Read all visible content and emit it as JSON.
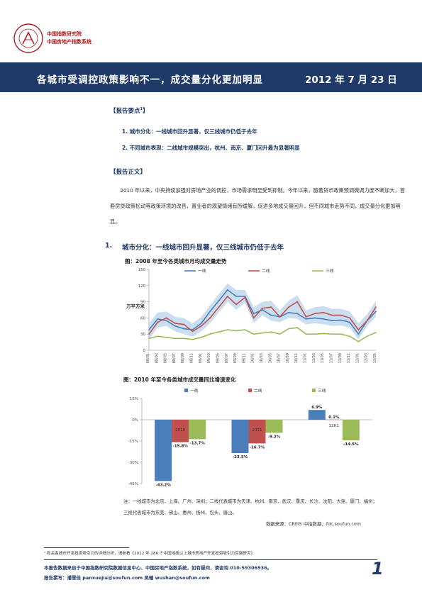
{
  "header": {
    "org_line1": "中国指数研究院",
    "org_line2": "中国房地产指数系统",
    "seal_text": "CHINA INDEX ACADEMY"
  },
  "banner": {
    "title": "各城市受调控政策影响不一，成交量分化更加明显",
    "date": "2012 年 7 月 23 日"
  },
  "report_points": {
    "heading": "【报告要点",
    "heading_sup": "1",
    "heading_close": "】",
    "items": [
      "1.  城市分化：一线城市回升显著，仅三线城市仍低于去年",
      "2.  不同城市表现：二线城市规模突出，杭州、南京、厦门回升最为显著明显"
    ]
  },
  "report_body": {
    "heading": "【报告正文】",
    "paragraph": "2010 年以来，中央持续加强对房地产业的调控，市场需求明显受到抑制。今年以来，随着货币政策预调微调力度不断加大，首套房贷政策松动等政策环境的改善，置业者的观望情绪有所缓解，促进多地成交量回升，但不同城市走势不同，成交量分化更加明显。"
  },
  "section1": {
    "number": "1.",
    "title": "城市分化：一线城市回升显著，仅三线城市仍低于去年"
  },
  "figure1": {
    "title": "图：2008 年至今各类城市月均成交量走势",
    "ylabel": "万平方米"
  },
  "figure2": {
    "title": "图：2010 年至今各类城市成交量同比增速变化"
  },
  "note": "注：一线城市为北京、上海、广州、深圳；二线代表城市为天津、杭州、南京、武汉、重庆、长沙、沈阳、大连、厦门、福州；三线代表城市为东莞、佛山、惠州、扬州、包头、唐山。",
  "source": "数据来源：CREIS 中指数据，fdc.soufun.com",
  "footnote": "¹ 有关各城市开发投资吸引力的详细分析，请参看《2012 年 286 个中国地级以上城市房地产开发投资吸引力百强研究》",
  "footer": {
    "line1": "本报告数据来自于中国指数研究院数据信息中心、中国房地产指数系统，如有疑问，请咨询 010-59306936。",
    "line2": "报告撰写：潘雪佳 panxuejia@soufun.com   吴珊 wushan@soufun.com",
    "page_number": "1"
  },
  "colors": {
    "tier1": "#4a7ebb",
    "tier2": "#c0504d",
    "tier3": "#9bbb59",
    "banner": "#1f3a68",
    "range_fill": "#b9d3ea"
  },
  "chart_data": [
    {
      "type": "line",
      "title": "图：2008 年至今各类城市月均成交量走势",
      "ylabel": "万平方米",
      "ylim": [
        0,
        150
      ],
      "yticks": [
        0,
        30,
        60,
        90,
        120,
        150
      ],
      "x": [
        "08/01",
        "08/03",
        "08/05",
        "08/07",
        "08/09",
        "08/11",
        "09/01",
        "09/03",
        "09/05",
        "09/07",
        "09/09",
        "09/11",
        "10/01",
        "10/03",
        "10/05",
        "10/07",
        "10/09",
        "10/11",
        "11/01",
        "11/03",
        "11/05",
        "11/07",
        "11/09",
        "11/11",
        "12/01",
        "12/03",
        "12/05"
      ],
      "legend_position": "top",
      "series": [
        {
          "name": "一线",
          "values": [
            38,
            58,
            55,
            45,
            40,
            38,
            50,
            72,
            92,
            112,
            100,
            100,
            68,
            75,
            65,
            62,
            70,
            68,
            58,
            60,
            58,
            55,
            56,
            52,
            30,
            55,
            72
          ]
        },
        {
          "name": "二线",
          "values": [
            30,
            52,
            60,
            50,
            48,
            35,
            45,
            60,
            80,
            100,
            85,
            98,
            60,
            78,
            80,
            62,
            80,
            90,
            62,
            68,
            70,
            65,
            65,
            60,
            38,
            55,
            80
          ]
        },
        {
          "name": "三线",
          "values": [
            22,
            26,
            24,
            22,
            22,
            20,
            24,
            30,
            34,
            38,
            36,
            38,
            30,
            32,
            34,
            30,
            40,
            42,
            30,
            30,
            31,
            30,
            30,
            26,
            16,
            26,
            33
          ]
        }
      ]
    },
    {
      "type": "bar",
      "title": "图：2010 年至今各类城市成交量同比增速变化",
      "categories": [
        "2010",
        "2011",
        "12H1"
      ],
      "ylim": [
        -45,
        15
      ],
      "yticks": [
        "15%",
        "0%",
        "-15%",
        "-30%",
        "-45%"
      ],
      "legend_position": "top",
      "series": [
        {
          "name": "一线",
          "values": [
            -43.2,
            -23.5,
            6.9
          ]
        },
        {
          "name": "二线",
          "values": [
            -15.8,
            -16.7,
            0.1
          ]
        },
        {
          "name": "三线",
          "values": [
            -13.7,
            -9.2,
            -14.5
          ]
        }
      ],
      "data_labels": [
        [
          "-43.2%",
          "-15.8%",
          "-13.7%"
        ],
        [
          "-23.5%",
          "-16.7%",
          "-9.2%"
        ],
        [
          "6.9%",
          "0.1%",
          "-14.5%"
        ]
      ]
    }
  ]
}
